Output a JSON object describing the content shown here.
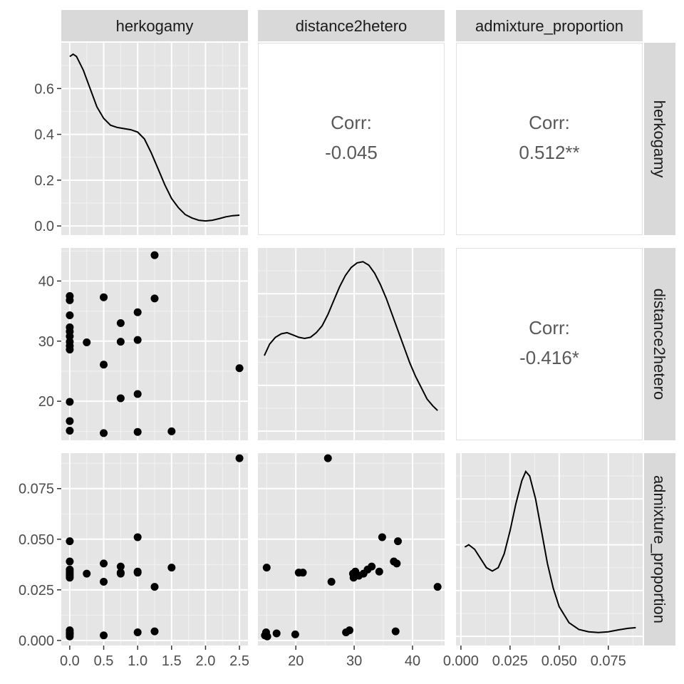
{
  "chart_data": {
    "type": "scatter-matrix",
    "variables": [
      "herkogamy",
      "distance2hetero",
      "admixture_proportion"
    ],
    "panel_backgrounds": {
      "plot": "#e5e5e5",
      "strip": "#d9d9d9",
      "corr": "#ffffff"
    },
    "axes": {
      "herkogamy": {
        "range": [
          -0.125,
          2.625
        ],
        "ticks": [
          0,
          0.5,
          1,
          1.5,
          2,
          2.5
        ],
        "tick_labels": [
          "0.0",
          "0.5",
          "1.0",
          "1.5",
          "2.0",
          "2.5"
        ]
      },
      "distance2hetero": {
        "range": [
          13.5,
          45.5
        ],
        "ticks": [
          20,
          30,
          40
        ],
        "tick_labels": [
          "20",
          "30",
          "40"
        ]
      },
      "admixture_proportion": {
        "range": [
          -0.0025,
          0.0925
        ],
        "ticks": [
          0,
          0.025,
          0.05,
          0.075
        ],
        "tick_labels": [
          "0.000",
          "0.025",
          "0.050",
          "0.075"
        ]
      }
    },
    "density_axis": {
      "range": [
        -0.04,
        0.8
      ],
      "ticks": [
        0,
        0.2,
        0.4,
        0.6
      ],
      "tick_labels": [
        "0.0",
        "0.2",
        "0.4",
        "0.6"
      ]
    },
    "correlations": [
      {
        "label": "Corr:",
        "value": "-0.045",
        "row": 0,
        "col": 1
      },
      {
        "label": "Corr:",
        "value": "0.512**",
        "row": 0,
        "col": 2
      },
      {
        "label": "Corr:",
        "value": "-0.416*",
        "row": 1,
        "col": 2
      }
    ],
    "observations": [
      {
        "herkogamy": 0,
        "distance2hetero": 37.5,
        "admixture_proportion": 0.049
      },
      {
        "herkogamy": 0,
        "distance2hetero": 36.8,
        "admixture_proportion": 0.039
      },
      {
        "herkogamy": 0,
        "distance2hetero": 34.3,
        "admixture_proportion": 0.034
      },
      {
        "herkogamy": 0,
        "distance2hetero": 32.3,
        "admixture_proportion": 0.035
      },
      {
        "herkogamy": 0,
        "distance2hetero": 31.6,
        "admixture_proportion": 0.033
      },
      {
        "herkogamy": 0,
        "distance2hetero": 30.8,
        "admixture_proportion": 0.032
      },
      {
        "herkogamy": 0,
        "distance2hetero": 29.9,
        "admixture_proportion": 0.031
      },
      {
        "herkogamy": 0,
        "distance2hetero": 29.2,
        "admixture_proportion": 0.005
      },
      {
        "herkogamy": 0,
        "distance2hetero": 28.6,
        "admixture_proportion": 0.004
      },
      {
        "herkogamy": 0,
        "distance2hetero": 19.9,
        "admixture_proportion": 0.003
      },
      {
        "herkogamy": 0,
        "distance2hetero": 16.7,
        "admixture_proportion": 0.0035
      },
      {
        "herkogamy": 0,
        "distance2hetero": 15.1,
        "admixture_proportion": 0.002
      },
      {
        "herkogamy": 0.25,
        "distance2hetero": 29.8,
        "admixture_proportion": 0.033
      },
      {
        "herkogamy": 0.5,
        "distance2hetero": 37.3,
        "admixture_proportion": 0.038
      },
      {
        "herkogamy": 0.5,
        "distance2hetero": 26.1,
        "admixture_proportion": 0.029
      },
      {
        "herkogamy": 0.5,
        "distance2hetero": 14.7,
        "admixture_proportion": 0.0025
      },
      {
        "herkogamy": 0.75,
        "distance2hetero": 33.0,
        "admixture_proportion": 0.0365
      },
      {
        "herkogamy": 0.75,
        "distance2hetero": 29.9,
        "admixture_proportion": 0.033
      },
      {
        "herkogamy": 0.75,
        "distance2hetero": 20.5,
        "admixture_proportion": 0.0335
      },
      {
        "herkogamy": 1.0,
        "distance2hetero": 34.8,
        "admixture_proportion": 0.051
      },
      {
        "herkogamy": 1.0,
        "distance2hetero": 30.2,
        "admixture_proportion": 0.034
      },
      {
        "herkogamy": 1.0,
        "distance2hetero": 21.2,
        "admixture_proportion": 0.0335
      },
      {
        "herkogamy": 1.0,
        "distance2hetero": 14.9,
        "admixture_proportion": 0.004
      },
      {
        "herkogamy": 1.25,
        "distance2hetero": 44.3,
        "admixture_proportion": 0.0265
      },
      {
        "herkogamy": 1.25,
        "distance2hetero": 37.1,
        "admixture_proportion": 0.0045
      },
      {
        "herkogamy": 1.5,
        "distance2hetero": 15.0,
        "admixture_proportion": 0.036
      },
      {
        "herkogamy": 2.5,
        "distance2hetero": 25.5,
        "admixture_proportion": 0.09
      }
    ],
    "densities": {
      "herkogamy": [
        [
          0.0,
          0.74
        ],
        [
          0.05,
          0.75
        ],
        [
          0.1,
          0.74
        ],
        [
          0.2,
          0.68
        ],
        [
          0.3,
          0.6
        ],
        [
          0.4,
          0.52
        ],
        [
          0.5,
          0.47
        ],
        [
          0.6,
          0.44
        ],
        [
          0.7,
          0.43
        ],
        [
          0.8,
          0.425
        ],
        [
          0.9,
          0.42
        ],
        [
          1.0,
          0.41
        ],
        [
          1.1,
          0.38
        ],
        [
          1.2,
          0.32
        ],
        [
          1.3,
          0.25
        ],
        [
          1.4,
          0.18
        ],
        [
          1.5,
          0.12
        ],
        [
          1.6,
          0.08
        ],
        [
          1.7,
          0.05
        ],
        [
          1.8,
          0.035
        ],
        [
          1.9,
          0.025
        ],
        [
          2.0,
          0.022
        ],
        [
          2.1,
          0.025
        ],
        [
          2.2,
          0.032
        ],
        [
          2.3,
          0.04
        ],
        [
          2.4,
          0.045
        ],
        [
          2.5,
          0.047
        ]
      ],
      "distance2hetero": [
        [
          14.6,
          0.33
        ],
        [
          15.5,
          0.38
        ],
        [
          16.5,
          0.41
        ],
        [
          17.5,
          0.425
        ],
        [
          18.5,
          0.43
        ],
        [
          19.5,
          0.42
        ],
        [
          20.5,
          0.41
        ],
        [
          21.5,
          0.405
        ],
        [
          22.5,
          0.41
        ],
        [
          23.5,
          0.43
        ],
        [
          24.5,
          0.46
        ],
        [
          25.5,
          0.51
        ],
        [
          26.5,
          0.57
        ],
        [
          27.5,
          0.63
        ],
        [
          28.5,
          0.68
        ],
        [
          29.5,
          0.715
        ],
        [
          30.5,
          0.735
        ],
        [
          31.5,
          0.74
        ],
        [
          32.5,
          0.725
        ],
        [
          33.5,
          0.69
        ],
        [
          34.5,
          0.64
        ],
        [
          35.5,
          0.58
        ],
        [
          36.5,
          0.51
        ],
        [
          37.5,
          0.44
        ],
        [
          38.5,
          0.37
        ],
        [
          39.5,
          0.3
        ],
        [
          40.5,
          0.24
        ],
        [
          41.5,
          0.19
        ],
        [
          42.5,
          0.14
        ],
        [
          43.5,
          0.11
        ],
        [
          44.3,
          0.09
        ]
      ],
      "admixture_proportion": [
        [
          0.002,
          0.39
        ],
        [
          0.004,
          0.4
        ],
        [
          0.007,
          0.38
        ],
        [
          0.01,
          0.34
        ],
        [
          0.013,
          0.3
        ],
        [
          0.016,
          0.285
        ],
        [
          0.019,
          0.3
        ],
        [
          0.022,
          0.36
        ],
        [
          0.025,
          0.46
        ],
        [
          0.028,
          0.58
        ],
        [
          0.031,
          0.68
        ],
        [
          0.033,
          0.72
        ],
        [
          0.035,
          0.7
        ],
        [
          0.038,
          0.6
        ],
        [
          0.041,
          0.46
        ],
        [
          0.044,
          0.32
        ],
        [
          0.047,
          0.21
        ],
        [
          0.05,
          0.13
        ],
        [
          0.055,
          0.06
        ],
        [
          0.06,
          0.03
        ],
        [
          0.065,
          0.02
        ],
        [
          0.07,
          0.017
        ],
        [
          0.075,
          0.02
        ],
        [
          0.08,
          0.028
        ],
        [
          0.085,
          0.035
        ],
        [
          0.089,
          0.038
        ]
      ]
    }
  }
}
